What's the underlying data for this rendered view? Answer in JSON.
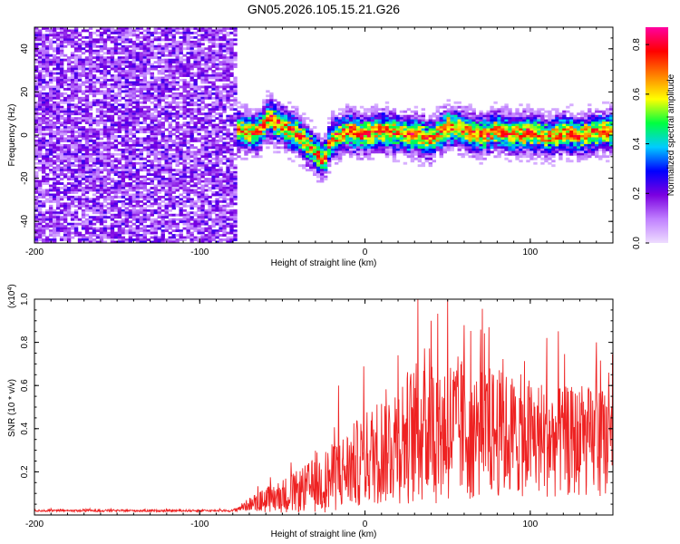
{
  "title": "GN05.2026.105.15.21.G26",
  "chart_data": [
    {
      "type": "heatmap",
      "name": "spectrogram",
      "xlabel": "Height of straight line (km)",
      "ylabel": "Frequency (Hz)",
      "xlim": [
        -200,
        150
      ],
      "ylim": [
        -50,
        50
      ],
      "x_ticks": [
        -200,
        -100,
        0,
        100
      ],
      "y_ticks": [
        -40,
        -20,
        0,
        20,
        40
      ],
      "noise_region_x": [
        -200,
        -78
      ],
      "signal_region_x": [
        -78,
        150
      ],
      "signal_center_freq_hz": [
        {
          "x": -78,
          "y": 2
        },
        {
          "x": -65,
          "y": 1
        },
        {
          "x": -58,
          "y": 8
        },
        {
          "x": -50,
          "y": 4
        },
        {
          "x": -40,
          "y": 0
        },
        {
          "x": -30,
          "y": -8
        },
        {
          "x": -25,
          "y": -12
        },
        {
          "x": -20,
          "y": -2
        },
        {
          "x": -10,
          "y": 2
        },
        {
          "x": 0,
          "y": 0
        },
        {
          "x": 10,
          "y": 2
        },
        {
          "x": 20,
          "y": 1
        },
        {
          "x": 30,
          "y": 0
        },
        {
          "x": 40,
          "y": -2
        },
        {
          "x": 50,
          "y": 4
        },
        {
          "x": 60,
          "y": 2
        },
        {
          "x": 70,
          "y": 0
        },
        {
          "x": 80,
          "y": 2
        },
        {
          "x": 90,
          "y": 0
        },
        {
          "x": 100,
          "y": 1
        },
        {
          "x": 110,
          "y": -1
        },
        {
          "x": 120,
          "y": 1
        },
        {
          "x": 130,
          "y": 0
        },
        {
          "x": 150,
          "y": 2
        }
      ],
      "colorbar": {
        "label": "Normalized spectral amplitude",
        "range": [
          0.0,
          0.87
        ],
        "ticks": [
          "0.0",
          "0.2",
          "0.4",
          "0.6",
          "0.8"
        ],
        "colors": [
          "#eeddff",
          "#c080ff",
          "#7b00e0",
          "#0000ff",
          "#00ccff",
          "#00ff40",
          "#ffff00",
          "#ff8000",
          "#ff0000",
          "#ff00a0"
        ]
      }
    },
    {
      "type": "line",
      "name": "snr",
      "xlabel": "Height of straight line (km)",
      "ylabel": "SNR (10 * v/v)",
      "scale_label_base": "(x10",
      "scale_label_exp": "4",
      "scale_label_close": ")",
      "xlim": [
        -200,
        150
      ],
      "ylim": [
        0,
        1.0
      ],
      "x_ticks": [
        -200,
        -100,
        0,
        100
      ],
      "y_ticks": [
        "0.2",
        "0.4",
        "0.6",
        "0.8",
        "1.0"
      ],
      "color": "#ee2222",
      "envelope": [
        {
          "x": -200,
          "mean": 0.02,
          "spread": 0.005
        },
        {
          "x": -80,
          "mean": 0.02,
          "spread": 0.005
        },
        {
          "x": -70,
          "mean": 0.05,
          "spread": 0.03
        },
        {
          "x": -60,
          "mean": 0.07,
          "spread": 0.06
        },
        {
          "x": -40,
          "mean": 0.11,
          "spread": 0.1
        },
        {
          "x": -20,
          "mean": 0.17,
          "spread": 0.16
        },
        {
          "x": 0,
          "mean": 0.26,
          "spread": 0.22
        },
        {
          "x": 20,
          "mean": 0.35,
          "spread": 0.3
        },
        {
          "x": 40,
          "mean": 0.4,
          "spread": 0.36
        },
        {
          "x": 60,
          "mean": 0.4,
          "spread": 0.34
        },
        {
          "x": 80,
          "mean": 0.38,
          "spread": 0.3
        },
        {
          "x": 100,
          "mean": 0.36,
          "spread": 0.28
        },
        {
          "x": 120,
          "mean": 0.34,
          "spread": 0.26
        },
        {
          "x": 150,
          "mean": 0.34,
          "spread": 0.25
        }
      ],
      "peaks": [
        {
          "x": 32,
          "y": 1.0
        },
        {
          "x": 50,
          "y": 1.0
        },
        {
          "x": 40,
          "y": 0.9
        },
        {
          "x": 60,
          "y": 0.88
        },
        {
          "x": 75,
          "y": 0.87
        },
        {
          "x": 20,
          "y": 0.74
        },
        {
          "x": -16,
          "y": 0.6
        },
        {
          "x": 140,
          "y": 0.8
        },
        {
          "x": 110,
          "y": 0.82
        }
      ]
    }
  ]
}
